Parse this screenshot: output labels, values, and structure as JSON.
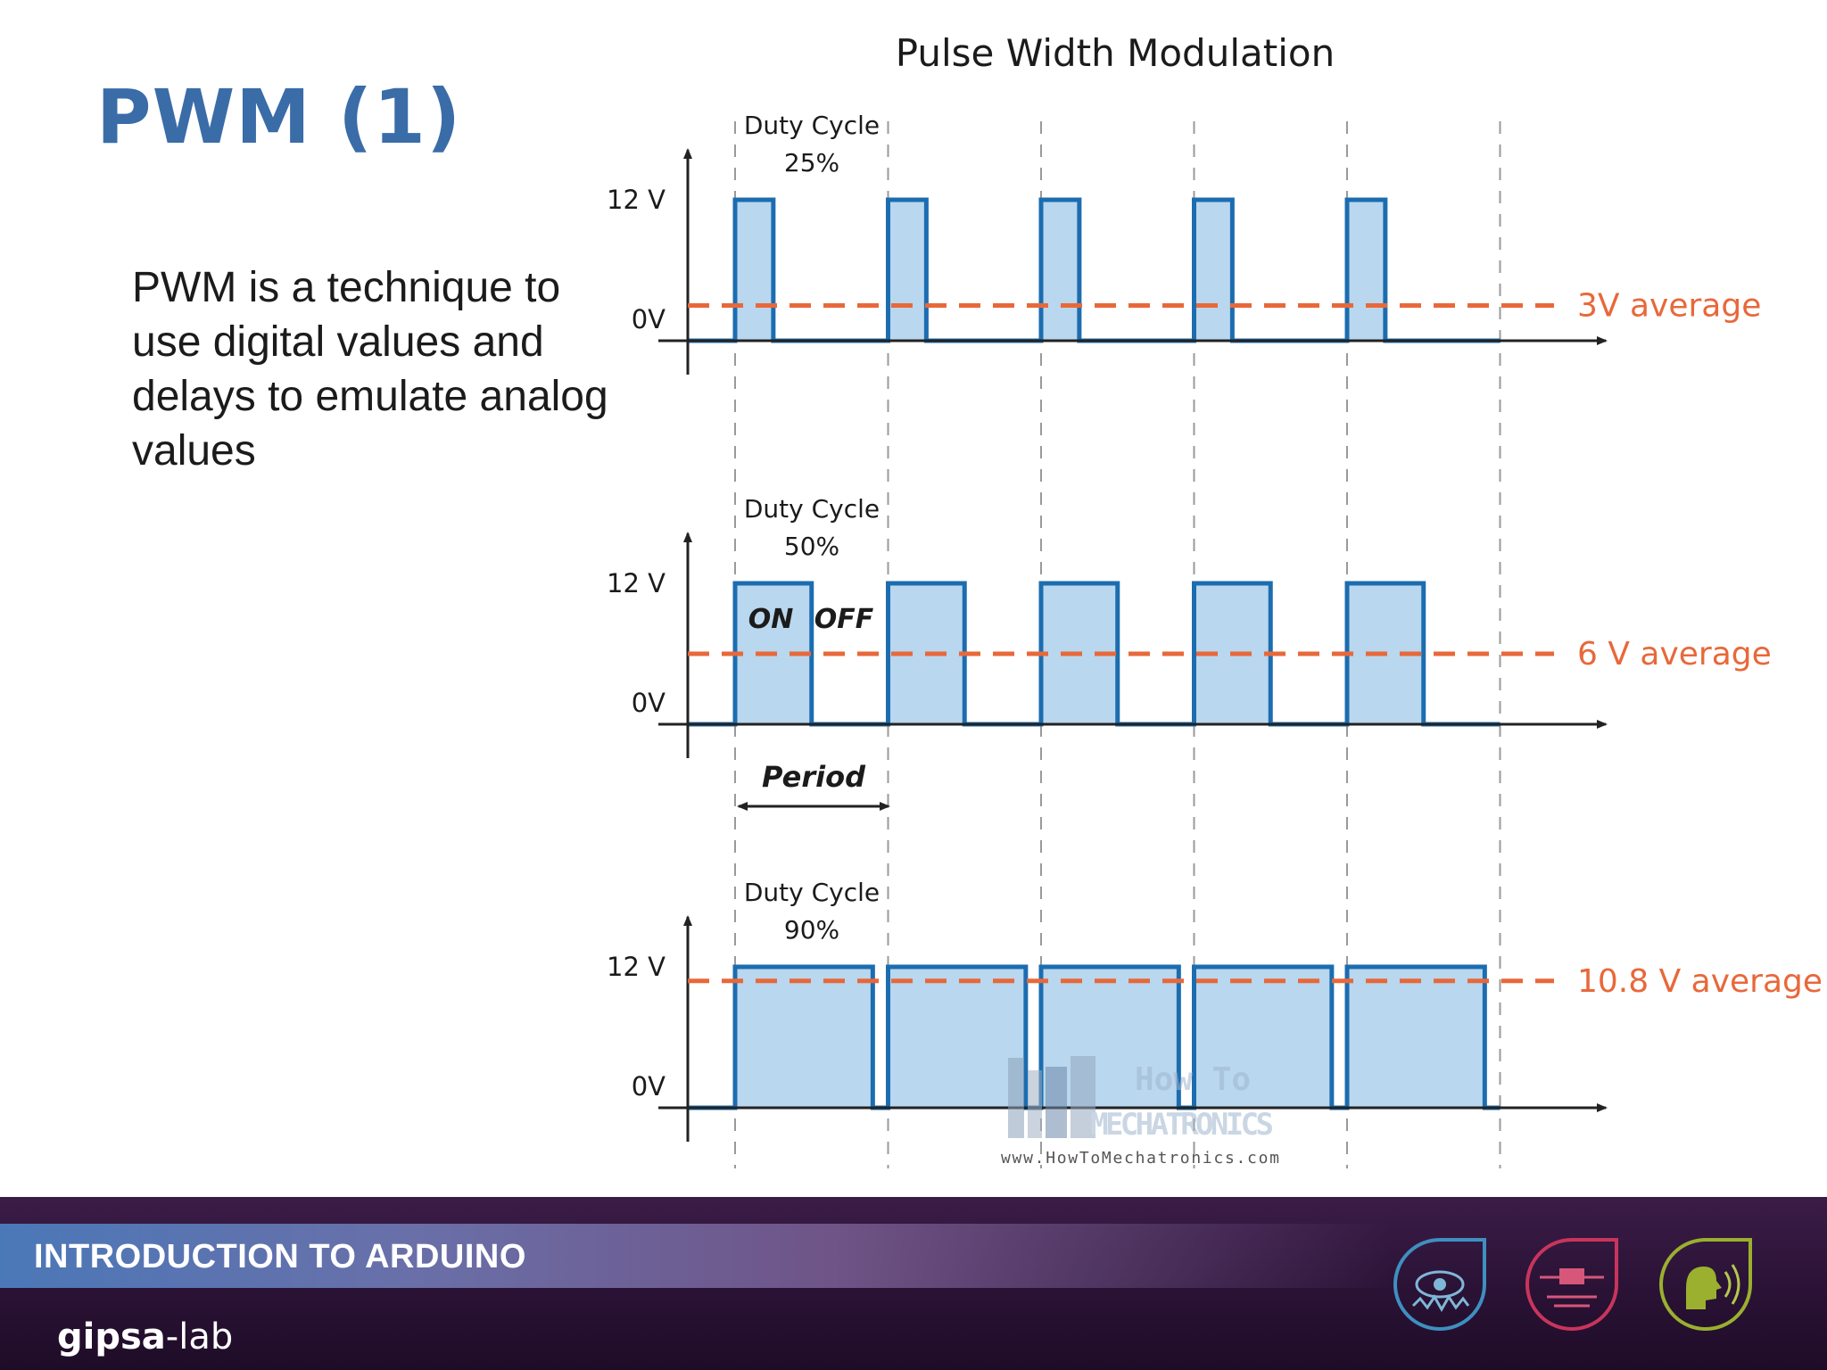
{
  "slide": {
    "title": "PWM (1)",
    "body": "PWM is a technique to use digital values and delays to emulate analog values"
  },
  "diagram": {
    "title": "Pulse Width Modulation",
    "y_high_label": "12 V",
    "y_low_label": "0V",
    "period_label": "Period",
    "on_label": "ON",
    "off_label": "OFF",
    "panels": [
      {
        "duty_label": "Duty Cycle",
        "duty_value": "25%",
        "duty": 0.25,
        "average_label": "3V average",
        "average_fraction": 0.25
      },
      {
        "duty_label": "Duty Cycle",
        "duty_value": "50%",
        "duty": 0.5,
        "average_label": "6 V average",
        "average_fraction": 0.5
      },
      {
        "duty_label": "Duty Cycle",
        "duty_value": "90%",
        "duty": 0.9,
        "average_label": "10.8 V average",
        "average_fraction": 0.9
      }
    ],
    "pulses_per_panel": 5,
    "colors": {
      "pulse_fill": "#b9d7ee",
      "pulse_stroke": "#1c6db0",
      "average": "#e8683a",
      "axis": "#222222",
      "grid": "#9a9a9a"
    },
    "watermark": {
      "line1": "How To",
      "line2": "MECHATRONICS",
      "url": "www.HowToMechatronics.com"
    }
  },
  "footer": {
    "course": "INTRODUCTION TO ARDUINO",
    "logo_bold": "gipsa",
    "logo_rest": "-lab",
    "badges": [
      "eye-icon",
      "circuit-icon",
      "speech-icon"
    ]
  }
}
